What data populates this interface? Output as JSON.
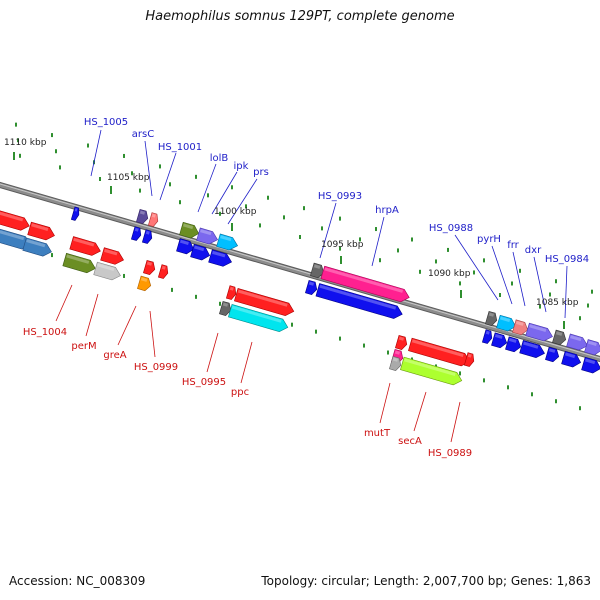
{
  "title": "Haemophilus somnus 129PT, complete genome",
  "footer": {
    "accession": "Accession: NC_008309",
    "summary": "Topology: circular; Length: 2,007,700 bp; Genes: 1,863"
  },
  "colors": {
    "backbone": "#8c8c8c",
    "tick": "#2f8f2f",
    "kbp_label": "#222222",
    "top_label": "#1e1ec8",
    "bottom_label": "#cc1111"
  },
  "scale_labels": [
    "1110 kbp",
    "1105 kbp",
    "1100 kbp",
    "1095 kbp",
    "1090 kbp",
    "1085 kbp"
  ],
  "top_gene_labels": [
    "HS_1005",
    "arsC",
    "HS_1001",
    "lolB",
    "ipk",
    "prs",
    "HS_0993",
    "hrpA",
    "HS_0988",
    "pyrH",
    "frr",
    "dxr",
    "HS_0984"
  ],
  "bottom_gene_labels": [
    "HS_1004",
    "perM",
    "greA",
    "HS_0999",
    "HS_0995",
    "ppc",
    "mutT",
    "secA",
    "HS_0989"
  ]
}
